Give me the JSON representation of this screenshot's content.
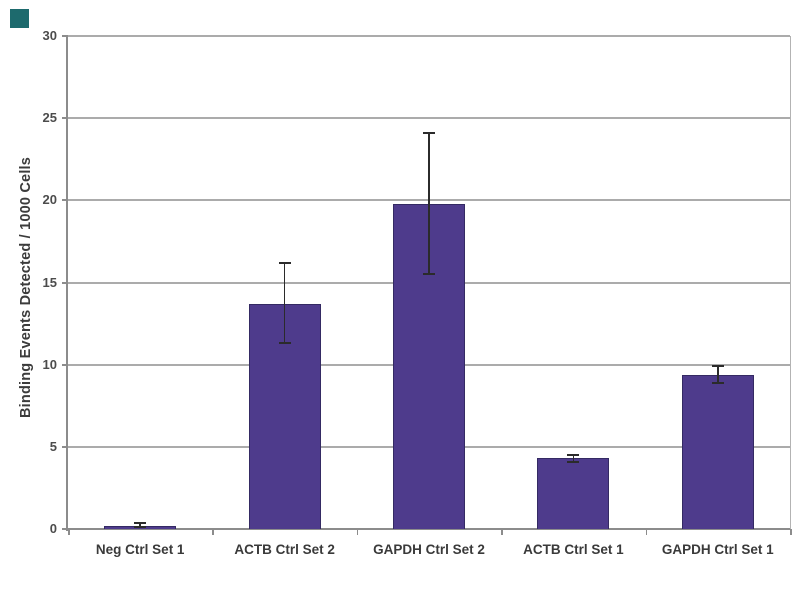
{
  "corner_mark": {
    "color": "#1d6a6d"
  },
  "chart_data": {
    "type": "bar",
    "title": "",
    "xlabel": "",
    "ylabel": "Binding Events Detected / 1000 Cells",
    "ylim": [
      0,
      30
    ],
    "yticks": [
      0,
      5,
      10,
      15,
      20,
      25,
      30
    ],
    "grid": true,
    "legend": false,
    "bar_color": "#4e3b8c",
    "error_color": "#2b2b2b",
    "categories": [
      "Neg Ctrl Set 1",
      "ACTB Ctrl Set 2",
      "GAPDH Ctrl Set 2",
      "ACTB Ctrl Set 1",
      "GAPDH Ctrl Set 1"
    ],
    "values": [
      0.2,
      13.7,
      19.8,
      4.3,
      9.4
    ],
    "errors": [
      {
        "low": 0.1,
        "high": 0.35
      },
      {
        "low": 11.3,
        "high": 16.2
      },
      {
        "low": 15.5,
        "high": 24.1
      },
      {
        "low": 4.1,
        "high": 4.5
      },
      {
        "low": 8.9,
        "high": 9.9
      }
    ]
  }
}
